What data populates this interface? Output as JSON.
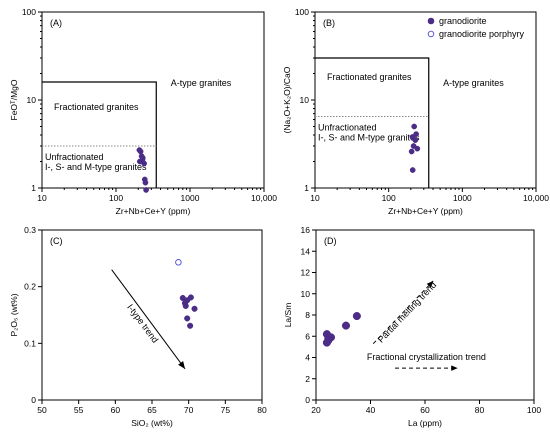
{
  "colors": {
    "granodiorite": "#4b2c86",
    "porphyry_stroke": "#4b4bd0",
    "dotted": "#888888"
  },
  "legend": {
    "granodiorite": "granodiorite",
    "granodiorite_porphyry": "granodiorite porphyry"
  },
  "chart_data": [
    {
      "id": "A",
      "type": "scatter",
      "panel_label": "(A)",
      "xlabel": "Zr+Nb+Ce+Y (ppm)",
      "ylabel": "FeOᵀ/MgO",
      "x_scale": "log",
      "y_scale": "log",
      "xlim": [
        10,
        10000
      ],
      "ylim": [
        1,
        100
      ],
      "xticks": [
        10,
        100,
        1000,
        10000
      ],
      "xtick_labels": [
        "10",
        "100",
        "1000",
        "10,000"
      ],
      "yticks": [
        1,
        10,
        100
      ],
      "ytick_labels": [
        "1",
        "10",
        "100"
      ],
      "fields": {
        "a_type": "A-type granites",
        "fractionated": "Fractionated granites",
        "unfractionated_1": "Unfractionated",
        "unfractionated_2": "I-, S- and M-type granites"
      },
      "boundary_box": {
        "x_max": 350,
        "y_max": 16
      },
      "dotted_line_y": 3.0,
      "series": [
        {
          "name": "granodiorite",
          "x": [
            207,
            215,
            222,
            230,
            240,
            210,
            228,
            245,
            250,
            255
          ],
          "y": [
            2.7,
            2.6,
            2.3,
            2.2,
            1.9,
            2.0,
            2.1,
            1.25,
            1.15,
            0.95
          ]
        }
      ]
    },
    {
      "id": "B",
      "type": "scatter",
      "panel_label": "(B)",
      "xlabel": "Zr+Nb+Ce+Y (ppm)",
      "ylabel": "(Na₂O+K₂O)/CaO",
      "x_scale": "log",
      "y_scale": "log",
      "xlim": [
        10,
        10000
      ],
      "ylim": [
        1,
        100
      ],
      "xticks": [
        10,
        100,
        1000,
        10000
      ],
      "xtick_labels": [
        "10",
        "100",
        "1000",
        "10,000"
      ],
      "yticks": [
        1,
        10,
        100
      ],
      "ytick_labels": [
        "1",
        "10",
        "100"
      ],
      "fields": {
        "a_type": "A-type granites",
        "fractionated": "Fractionated granites",
        "unfractionated_1": "Unfractionated",
        "unfractionated_2": "I-, S- and M-type granites"
      },
      "boundary_box": {
        "x_max": 350,
        "y_max": 30
      },
      "dotted_line_y": 6.5,
      "series": [
        {
          "name": "granodiorite",
          "x": [
            222,
            236,
            210,
            230,
            218,
            245,
            205,
            212
          ],
          "y": [
            5.0,
            4.1,
            3.8,
            3.5,
            3.0,
            2.8,
            2.6,
            1.6
          ]
        }
      ]
    },
    {
      "id": "C",
      "type": "scatter",
      "panel_label": "(C)",
      "xlabel": "SiO₂ (wt%)",
      "ylabel": "P₂O₅ (wt%)",
      "xlim": [
        50,
        80
      ],
      "ylim": [
        0,
        0.3
      ],
      "xticks": [
        50,
        55,
        60,
        65,
        70,
        75,
        80
      ],
      "xtick_labels": [
        "50",
        "55",
        "60",
        "65",
        "70",
        "75",
        "80"
      ],
      "yticks": [
        0,
        0.1,
        0.2,
        0.3
      ],
      "ytick_labels": [
        "0",
        "0.1",
        "0.2",
        "0.3"
      ],
      "trend": {
        "label": "I-type trend",
        "from": [
          59.5,
          0.23
        ],
        "to": [
          69.5,
          0.055
        ]
      },
      "series": [
        {
          "name": "granodiorite",
          "x": [
            69.2,
            69.8,
            69.5,
            70.3,
            69.6,
            70.8,
            69.8,
            70.2
          ],
          "y": [
            0.18,
            0.176,
            0.171,
            0.181,
            0.166,
            0.161,
            0.144,
            0.131
          ]
        },
        {
          "name": "granodiorite porphyry",
          "x": [
            68.6
          ],
          "y": [
            0.243
          ]
        }
      ]
    },
    {
      "id": "D",
      "type": "scatter",
      "panel_label": "(D)",
      "xlabel": "La (ppm)",
      "ylabel": "La/Sm",
      "xlim": [
        20,
        100
      ],
      "ylim": [
        0,
        16
      ],
      "xticks": [
        20,
        40,
        60,
        80,
        100
      ],
      "xtick_labels": [
        "20",
        "40",
        "60",
        "80",
        "100"
      ],
      "yticks": [
        0,
        2,
        4,
        6,
        8,
        10,
        12,
        14,
        16
      ],
      "ytick_labels": [
        "0",
        "2",
        "4",
        "6",
        "8",
        "10",
        "12",
        "14",
        "16"
      ],
      "trends": [
        {
          "label": "Partial melting trend",
          "from": [
            41,
            5.3
          ],
          "to": [
            63,
            11.2
          ]
        },
        {
          "label": "Fractional crystallization trend",
          "from": [
            49,
            3.0
          ],
          "to": [
            72,
            3.0
          ]
        }
      ],
      "series": [
        {
          "name": "granodiorite",
          "x": [
            24.0,
            24.5,
            25.5,
            24.0,
            24.5,
            31.0,
            35.0
          ],
          "y": [
            6.2,
            5.8,
            5.9,
            5.4,
            5.6,
            7.0,
            7.9
          ]
        }
      ]
    }
  ]
}
